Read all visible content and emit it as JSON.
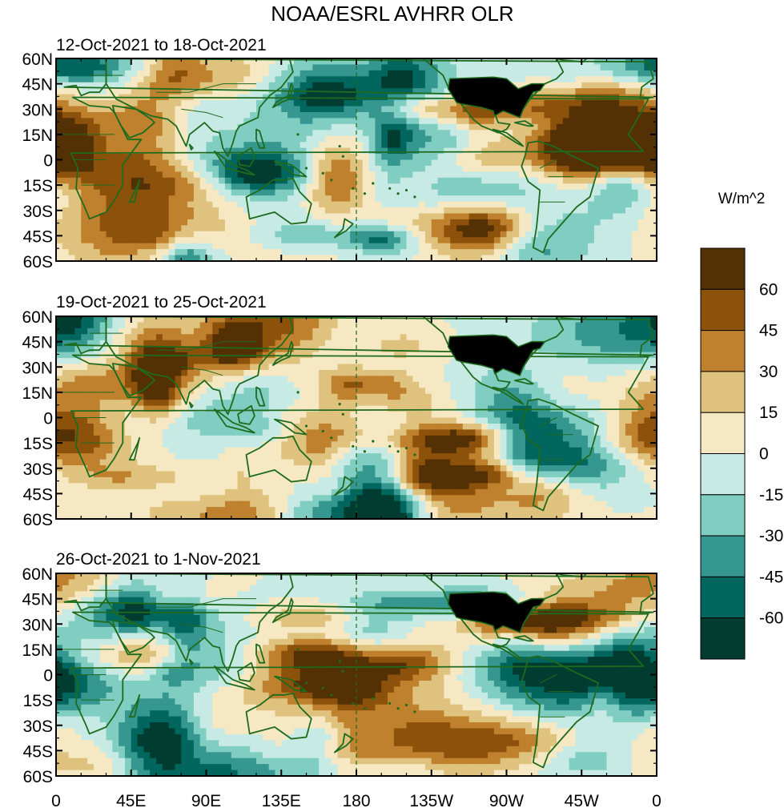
{
  "title": "NOAA/ESRL AVHRR OLR",
  "units": "W/m^2",
  "panels": [
    {
      "label": "12-Oct-2021 to 18-Oct-2021",
      "seed": 11
    },
    {
      "label": "19-Oct-2021 to 25-Oct-2021",
      "seed": 29
    },
    {
      "label": "26-Oct-2021 to 1-Nov-2021",
      "seed": 47
    }
  ],
  "lat_ticks": [
    "60N",
    "45N",
    "30N",
    "15N",
    "0",
    "15S",
    "30S",
    "45S",
    "60S"
  ],
  "lon_ticks": [
    "0",
    "45E",
    "90E",
    "135E",
    "180",
    "135W",
    "90W",
    "45W",
    "0"
  ],
  "lat_range": [
    -60,
    60
  ],
  "lon_range": [
    0,
    360
  ],
  "colorbar": {
    "levels": [
      60,
      45,
      30,
      15,
      0,
      -15,
      -30,
      -45,
      -60
    ],
    "colors": [
      "#543005",
      "#8c510a",
      "#bf812d",
      "#dfc27d",
      "#f6e8c3",
      "#c7eae5",
      "#80cdc1",
      "#35978f",
      "#01665e",
      "#003c30"
    ]
  },
  "land_color": "#1e6b1e",
  "usa_fill_color": "#000000"
}
